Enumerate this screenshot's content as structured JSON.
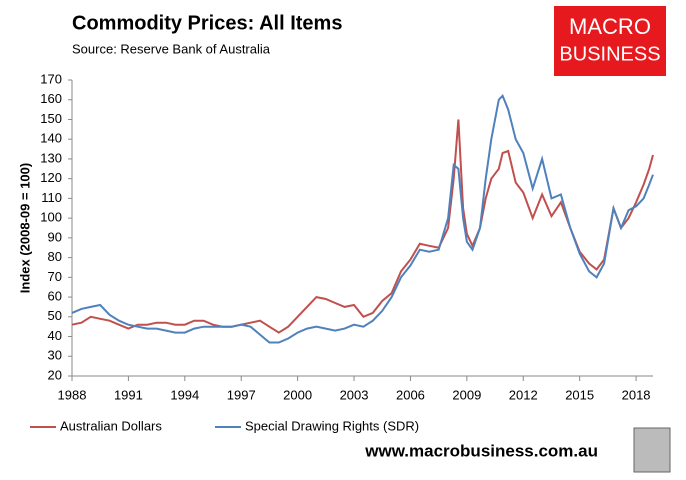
{
  "chart_data": {
    "type": "line",
    "title": "Commodity Prices: All Items",
    "subtitle": "Source: Reserve Bank of Australia",
    "y_label": "Index (2008-09 = 100)",
    "logo": [
      "MACRO",
      "BUSINESS"
    ],
    "footer": "www.macrobusiness.com.au",
    "x": [
      1988.0,
      1988.5,
      1989.0,
      1989.5,
      1990.0,
      1990.5,
      1991.0,
      1991.5,
      1992.0,
      1992.5,
      1993.0,
      1993.5,
      1994.0,
      1994.5,
      1995.0,
      1995.5,
      1996.0,
      1996.5,
      1997.0,
      1997.5,
      1998.0,
      1998.5,
      1999.0,
      1999.5,
      2000.0,
      2000.5,
      2001.0,
      2001.5,
      2002.0,
      2002.5,
      2003.0,
      2003.5,
      2004.0,
      2004.5,
      2005.0,
      2005.5,
      2006.0,
      2006.5,
      2007.0,
      2007.5,
      2008.0,
      2008.3,
      2008.55,
      2008.8,
      2009.0,
      2009.3,
      2009.7,
      2010.0,
      2010.3,
      2010.7,
      2010.9,
      2011.2,
      2011.6,
      2012.0,
      2012.5,
      2013.0,
      2013.5,
      2014.0,
      2014.5,
      2015.0,
      2015.5,
      2015.9,
      2016.3,
      2016.8,
      2017.2,
      2017.6,
      2018.0,
      2018.4,
      2018.7,
      2018.9
    ],
    "series": [
      {
        "name": "Australian Dollars",
        "color": "#c0504d",
        "values": [
          46,
          47,
          50,
          49,
          48,
          46,
          44,
          46,
          46,
          47,
          47,
          46,
          46,
          48,
          48,
          46,
          45,
          45,
          46,
          47,
          48,
          45,
          42,
          45,
          50,
          55,
          60,
          59,
          57,
          55,
          56,
          50,
          52,
          58,
          62,
          73,
          79,
          87,
          86,
          85,
          95,
          120,
          150,
          105,
          92,
          86,
          95,
          110,
          120,
          125,
          133,
          134,
          118,
          113,
          100,
          112,
          101,
          108,
          95,
          83,
          77,
          74,
          79,
          105,
          95,
          100,
          108,
          117,
          125,
          132
        ]
      },
      {
        "name": "Special Drawing Rights (SDR)",
        "color": "#4f81bd",
        "values": [
          52,
          54,
          55,
          56,
          51,
          48,
          46,
          45,
          44,
          44,
          43,
          42,
          42,
          44,
          45,
          45,
          45,
          45,
          46,
          45,
          41,
          37,
          37,
          39,
          42,
          44,
          45,
          44,
          43,
          44,
          46,
          45,
          48,
          53,
          60,
          70,
          76,
          84,
          83,
          84,
          100,
          127,
          125,
          100,
          88,
          84,
          95,
          120,
          140,
          160,
          162,
          155,
          140,
          133,
          115,
          130,
          110,
          112,
          95,
          82,
          73,
          70,
          77,
          105,
          95,
          104,
          106,
          110,
          117,
          122
        ]
      }
    ],
    "xlim": [
      1988,
      2018.9
    ],
    "xticks": [
      1988,
      1991,
      1994,
      1997,
      2000,
      2003,
      2006,
      2009,
      2012,
      2015,
      2018
    ],
    "ylim": [
      20,
      170
    ],
    "yticks": [
      20,
      30,
      40,
      50,
      60,
      70,
      80,
      90,
      100,
      110,
      120,
      130,
      140,
      150,
      160,
      170
    ],
    "grid": false
  }
}
